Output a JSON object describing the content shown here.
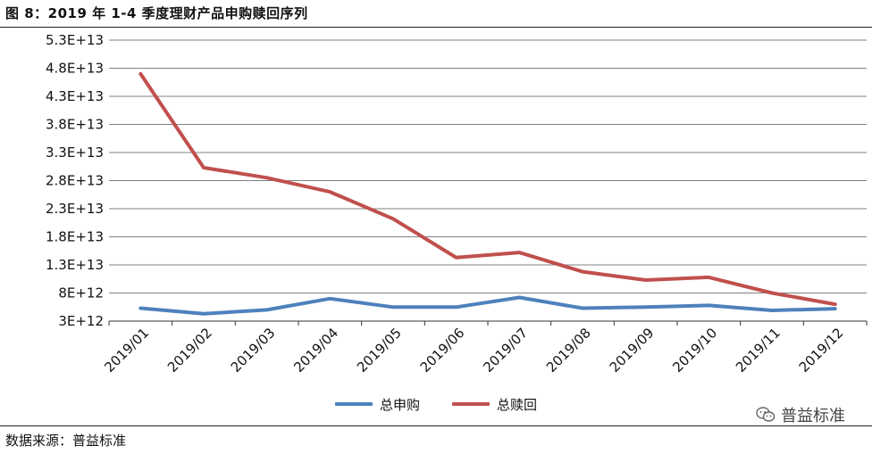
{
  "title": "图 8：2019 年 1-4 季度理财产品申购赎回序列",
  "source": "数据来源：普益标准",
  "watermark": "普益标准",
  "colors": {
    "subscription": "#4E81BD",
    "redemption": "#C0504D",
    "grid": "#808080"
  },
  "chart_data": {
    "type": "line",
    "categories": [
      "2019/01",
      "2019/02",
      "2019/03",
      "2019/04",
      "2019/05",
      "2019/06",
      "2019/07",
      "2019/08",
      "2019/09",
      "2019/10",
      "2019/11",
      "2019/12"
    ],
    "y_ticks": [
      "5.3E+13",
      "4.8E+13",
      "4.3E+13",
      "3.8E+13",
      "3.3E+13",
      "2.8E+13",
      "2.3E+13",
      "1.8E+13",
      "1.3E+13",
      "8E+12",
      "3E+12"
    ],
    "ylim": [
      3000000000000.0,
      53000000000000.0
    ],
    "grid": true,
    "legend_position": "bottom",
    "series": [
      {
        "name": "总申购",
        "color": "#4E81BD",
        "values": [
          5300000000000.0,
          4300000000000.0,
          5000000000000.0,
          7000000000000.0,
          5500000000000.0,
          5500000000000.0,
          7200000000000.0,
          5300000000000.0,
          5500000000000.0,
          5800000000000.0,
          4900000000000.0,
          5200000000000.0
        ]
      },
      {
        "name": "总赎回",
        "color": "#C0504D",
        "values": [
          47000000000000.0,
          30300000000000.0,
          28500000000000.0,
          26000000000000.0,
          21200000000000.0,
          14300000000000.0,
          15200000000000.0,
          11800000000000.0,
          10300000000000.0,
          10800000000000.0,
          8000000000000.0,
          6000000000000.0
        ]
      }
    ]
  }
}
